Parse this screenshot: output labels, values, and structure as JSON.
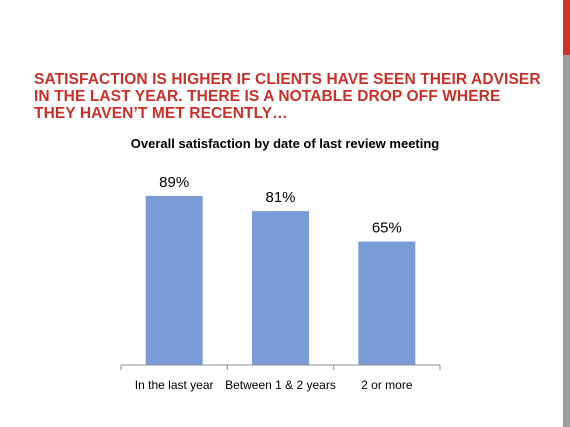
{
  "slide": {
    "title": "SATISFACTION IS HIGHER IF CLIENTS HAVE SEEN THEIR ADVISER IN THE LAST YEAR.  THERE IS A NOTABLE DROP OFF WHERE THEY HAVEN’T MET RECENTLY…",
    "accent_color": "#d0332c",
    "side_bar_color": "#9e9e9e"
  },
  "chart_data": {
    "type": "bar",
    "title": "Overall satisfaction  by date of last review meeting",
    "categories": [
      "In the last year",
      "Between 1 & 2 years",
      "2 or more"
    ],
    "values": [
      89,
      81,
      65
    ],
    "data_labels": [
      "89%",
      "81%",
      "65%"
    ],
    "unit": "%",
    "ylim": [
      0,
      100
    ],
    "grid": false,
    "legend": "none",
    "bar_color": "#7b9bd6"
  }
}
